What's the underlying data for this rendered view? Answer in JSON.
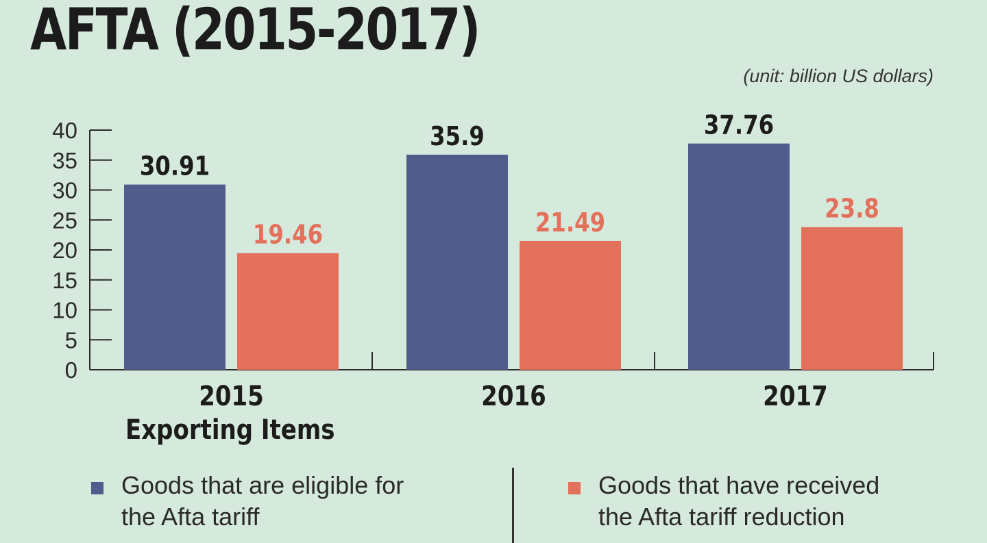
{
  "header": {
    "title": "AFTA (2015-2017)",
    "unit": "(unit: billion US dollars)"
  },
  "subtitle": "Exporting Items",
  "legend": [
    {
      "label": "Goods that are eligible for the Afta tariff",
      "color": "#525c8c"
    },
    {
      "label": "Goods that have received the Afta tariff reduction",
      "color": "#e3705a"
    }
  ],
  "chart_data": {
    "type": "bar",
    "categories": [
      "2015",
      "2016",
      "2017"
    ],
    "series": [
      {
        "values": [
          30.91,
          35.9,
          37.76
        ],
        "labels": [
          "30.91",
          "35.9",
          "37.76"
        ],
        "color": "#525c8c",
        "label_color": "#1c1c1c"
      },
      {
        "values": [
          19.46,
          21.49,
          23.8
        ],
        "labels": [
          "19.46",
          "21.49",
          "23.8"
        ],
        "color": "#e3705a",
        "label_color": "#e3705a"
      }
    ],
    "yticks": [
      "0",
      "5",
      "10",
      "15",
      "20",
      "25",
      "30",
      "35",
      "40"
    ],
    "ylim": [
      0,
      40
    ]
  }
}
